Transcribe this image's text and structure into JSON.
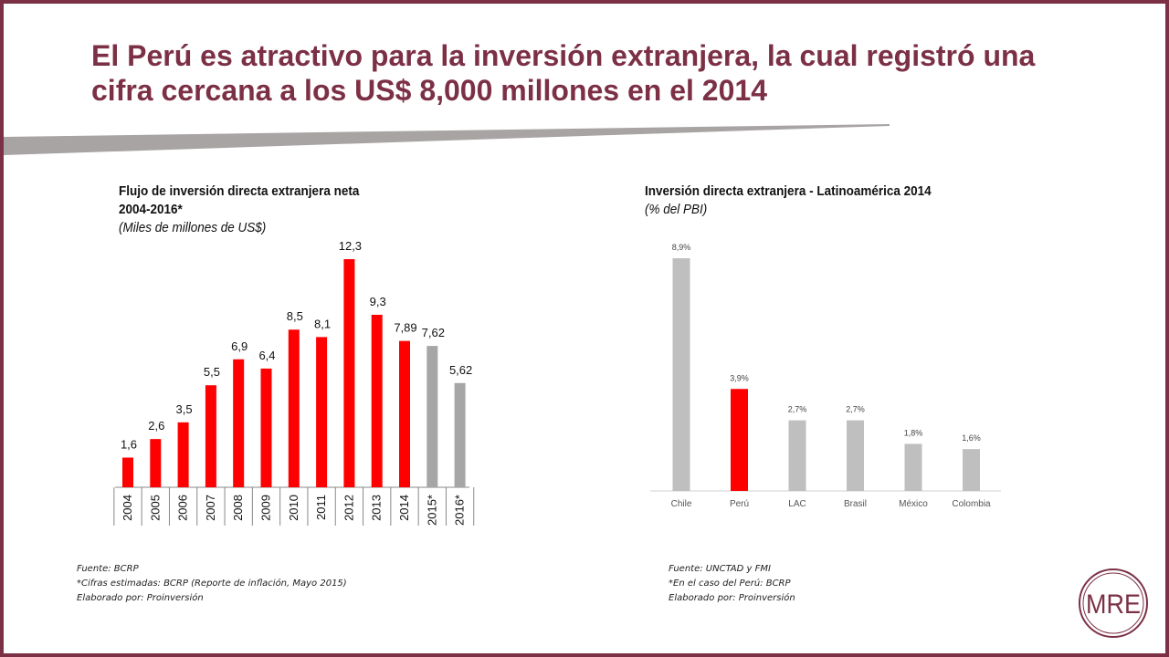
{
  "title": "El Perú es atractivo para la inversión extranjera, la cual registró una cifra cercana a los US$ 8,000 millones en el 2014",
  "colors": {
    "frame": "#7c3046",
    "red": "#ff0000",
    "gray": "#a6a6a6",
    "light_gray": "#bfbfbf"
  },
  "chart_left": {
    "title_line1": "Flujo de inversión directa extranjera neta",
    "title_line2": "2004-2016*",
    "subtitle": "(Miles de millones de US$)",
    "sources": [
      "Fuente: BCRP",
      "*Cifras estimadas: BCRP (Reporte de inflación, Mayo 2015)",
      "Elaborado por: Proinversión"
    ]
  },
  "chart_right": {
    "title": "Inversión directa extranjera - Latinoamérica 2014",
    "subtitle": "(% del PBI)",
    "sources": [
      "Fuente: UNCTAD  y FMI",
      "*En el caso del Perú: BCRP",
      "Elaborado por: Proinversión"
    ]
  },
  "logo": {
    "text": "MRE"
  },
  "chart_data": [
    {
      "type": "bar",
      "title": "Flujo de inversión directa extranjera neta 2004-2016*",
      "ylabel": "(Miles de millones de US$)",
      "categories": [
        "2004",
        "2005",
        "2006",
        "2007",
        "2008",
        "2009",
        "2010",
        "2011",
        "2012",
        "2013",
        "2014",
        "2015*",
        "2016*"
      ],
      "values": [
        1.6,
        2.6,
        3.5,
        5.5,
        6.9,
        6.4,
        8.5,
        8.1,
        12.3,
        9.3,
        7.89,
        7.62,
        5.62
      ],
      "labels": [
        "1,6",
        "2,6",
        "3,5",
        "5,5",
        "6,9",
        "6,4",
        "8,5",
        "8,1",
        "12,3",
        "9,3",
        "7,89",
        "7,62",
        "5,62"
      ],
      "colors": [
        "red",
        "red",
        "red",
        "red",
        "red",
        "red",
        "red",
        "red",
        "red",
        "red",
        "red",
        "gray",
        "gray"
      ],
      "ylim": [
        0,
        13
      ]
    },
    {
      "type": "bar",
      "title": "Inversión directa extranjera - Latinoamérica 2014",
      "ylabel": "(% del PBI)",
      "categories": [
        "Chile",
        "Perú",
        "LAC",
        "Brasil",
        "México",
        "Colombia"
      ],
      "values": [
        8.9,
        3.9,
        2.7,
        2.7,
        1.8,
        1.6
      ],
      "labels": [
        "8,9%",
        "3,9%",
        "2,7%",
        "2,7%",
        "1,8%",
        "1,6%"
      ],
      "colors": [
        "light_gray",
        "red",
        "light_gray",
        "light_gray",
        "light_gray",
        "light_gray"
      ],
      "ylim": [
        0,
        9
      ]
    }
  ]
}
